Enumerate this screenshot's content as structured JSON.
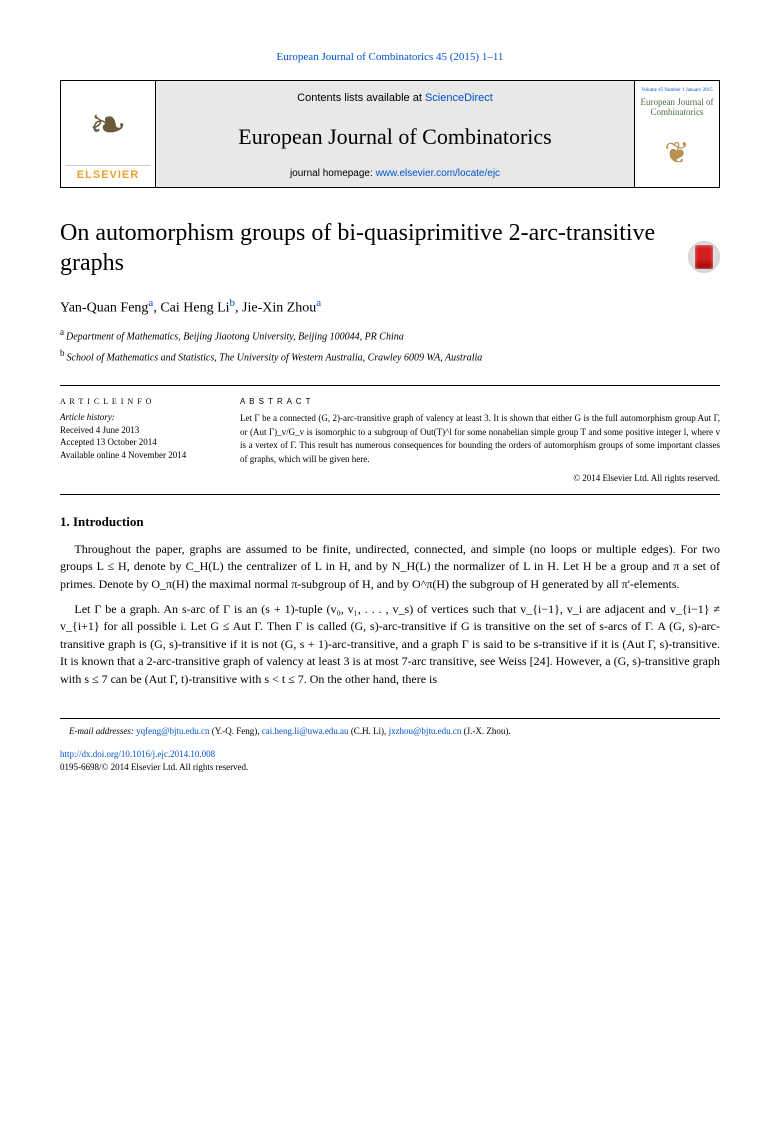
{
  "journal_ref": {
    "prefix": "",
    "link_text": "European Journal of Combinatorics 45 (2015) 1–11",
    "link": true
  },
  "header": {
    "logo_label": "ELSEVIER",
    "contents_prefix": "Contents lists available at ",
    "contents_link": "ScienceDirect",
    "journal_title": "European Journal of Combinatorics",
    "homepage_prefix": "journal homepage: ",
    "homepage_link": "www.elsevier.com/locate/ejc",
    "cover_small": "Volume 45 Number 1 January 2015",
    "cover_title": "European Journal of Combinatorics"
  },
  "paper": {
    "title": "On automorphism groups of bi-quasiprimitive 2-arc-transitive graphs",
    "authors_html": [
      {
        "name": "Yan-Quan Feng",
        "sup": "a"
      },
      {
        "name": ", Cai Heng Li",
        "sup": "b"
      },
      {
        "name": ", Jie-Xin Zhou",
        "sup": "a"
      }
    ],
    "affiliations": [
      {
        "sup": "a",
        "text": "Department of Mathematics, Beijing Jiaotong University, Beijing 100044, PR China"
      },
      {
        "sup": "b",
        "text": "School of Mathematics and Statistics, The University of Western Australia, Crawley 6009 WA, Australia"
      }
    ]
  },
  "article_info": {
    "head": "A R T I C L E   I N F O",
    "history_label": "Article history:",
    "received": "Received 4 June 2013",
    "accepted": "Accepted 13 October 2014",
    "online": "Available online 4 November 2014"
  },
  "abstract": {
    "head": "A B S T R A C T",
    "text": "Let Γ be a connected (G, 2)-arc-transitive graph of valency at least 3. It is shown that either G is the full automorphism group Aut Γ, or (Aut Γ)_v/G_v is isomorphic to a subgroup of Out(T)^l for some nonabelian simple group T and some positive integer l, where v is a vertex of Γ. This result has numerous consequences for bounding the orders of automorphism groups of some important classes of graphs, which will be given here.",
    "copyright": "© 2014 Elsevier Ltd. All rights reserved."
  },
  "section": {
    "num_title": "1. Introduction",
    "p1": "Throughout the paper, graphs are assumed to be finite, undirected, connected, and simple (no loops or multiple edges). For two groups L ≤ H, denote by C_H(L) the centralizer of L in H, and by N_H(L) the normalizer of L in H. Let H be a group and π a set of primes. Denote by O_π(H) the maximal normal π-subgroup of H, and by O^π(H) the subgroup of H generated by all π'-elements.",
    "p2": "Let Γ be a graph. An s-arc of Γ is an (s + 1)-tuple (v₀, v₁, . . . , v_s) of vertices such that v_{i−1}, v_i are adjacent and v_{i−1} ≠ v_{i+1} for all possible i. Let G ≤ Aut Γ. Then Γ is called (G, s)-arc-transitive if G is transitive on the set of s-arcs of Γ. A (G, s)-arc-transitive graph is (G, s)-transitive if it is not (G, s + 1)-arc-transitive, and a graph Γ is said to be s-transitive if it is (Aut Γ, s)-transitive. It is known that a 2-arc-transitive graph of valency at least 3 is at most 7-arc transitive, see Weiss [24]. However, a (G, s)-transitive graph with s ≤ 7 can be (Aut Γ, t)-transitive with s < t ≤ 7. On the other hand, there is"
  },
  "footnotes": {
    "emails_label": "E-mail addresses:",
    "emails": [
      {
        "addr": "yqfeng@bjtu.edu.cn",
        "who": " (Y.-Q. Feng), "
      },
      {
        "addr": "cai.heng.li@uwa.edu.au",
        "who": " (C.H. Li), "
      },
      {
        "addr": "jxzhou@bjtu.edu.cn",
        "who": " (J.-X. Zhou)."
      }
    ],
    "doi_link": "http://dx.doi.org/10.1016/j.ejc.2014.10.008",
    "doi_tail": "0195-6698/© 2014 Elsevier Ltd. All rights reserved."
  }
}
